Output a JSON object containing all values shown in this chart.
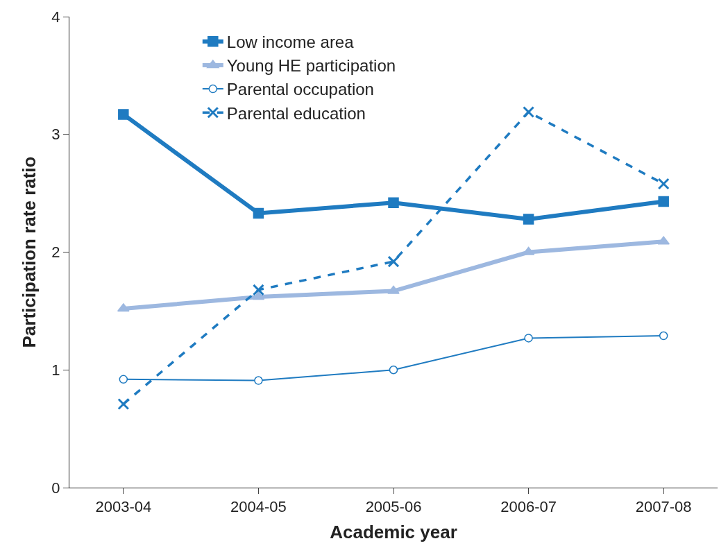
{
  "chart_data": {
    "type": "line",
    "xlabel": "Academic year",
    "ylabel": "Participation rate ratio",
    "categories": [
      "2003-04",
      "2004-05",
      "2005-06",
      "2006-07",
      "2007-08"
    ],
    "series": [
      {
        "name": "Low income area",
        "color": "#1f7bc1",
        "marker": "square",
        "line_style": "solid",
        "values": [
          3.17,
          2.33,
          2.42,
          2.28,
          2.43
        ]
      },
      {
        "name": "Young HE participation",
        "color": "#9db8e0",
        "marker": "triangle",
        "line_style": "solid",
        "values": [
          1.52,
          1.62,
          1.67,
          2.0,
          2.09
        ]
      },
      {
        "name": "Parental occupation",
        "color": "#1f7bc1",
        "marker": "circle",
        "line_style": "solid",
        "values": [
          0.92,
          0.91,
          1.0,
          1.27,
          1.29
        ]
      },
      {
        "name": "Parental education",
        "color": "#1f7bc1",
        "marker": "cross",
        "line_style": "dashed",
        "values": [
          0.71,
          1.68,
          1.92,
          3.19,
          2.58
        ]
      }
    ],
    "ylim": [
      0,
      4
    ],
    "yticks": [
      0,
      1,
      2,
      3,
      4
    ],
    "legend": "top left"
  }
}
